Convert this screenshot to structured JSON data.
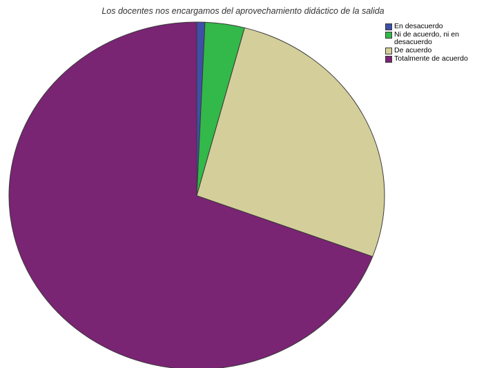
{
  "chart_data": {
    "type": "pie",
    "title": "Los docentes nos encargamos del aprovechamiento didáctico de la salida",
    "start_angle_deg": 0,
    "direction": "clockwise",
    "legend_position": "top-right",
    "slices": [
      {
        "label": "En desacuerdo",
        "value": 0.7,
        "color": "#3e4fa8"
      },
      {
        "label": "Ni de acuerdo, ni en desacuerdo",
        "value": 3.4,
        "color": "#33b84a"
      },
      {
        "label": "De acuerdo",
        "value": 26.6,
        "color": "#d4cf9a"
      },
      {
        "label": "Totalmente de acuerdo",
        "value": 69.3,
        "color": "#7a2474"
      }
    ],
    "slice_border_color": "#3a3a3a"
  }
}
